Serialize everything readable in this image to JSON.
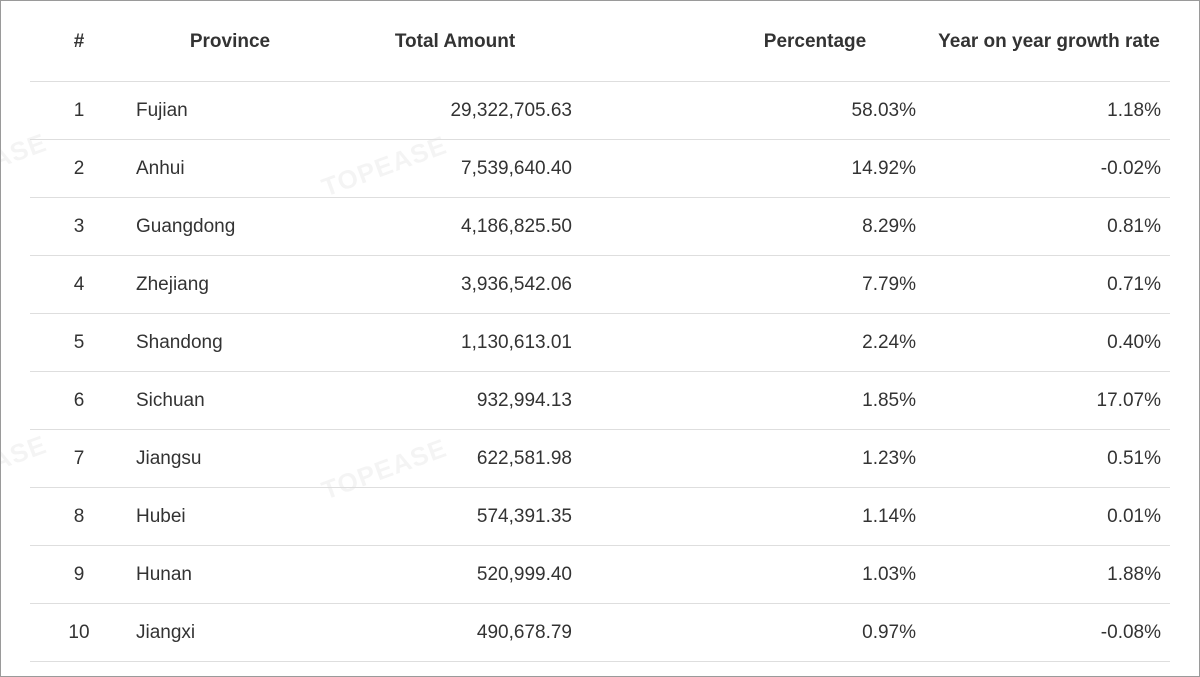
{
  "table": {
    "headers": {
      "rank": "#",
      "province": "Province",
      "total_amount": "Total Amount",
      "percentage": "Percentage",
      "yoy_growth": "Year on year growth rate"
    },
    "rows": [
      {
        "rank": "1",
        "province": "Fujian",
        "total_amount": "29,322,705.63",
        "percentage": "58.03%",
        "yoy_growth": "1.18%"
      },
      {
        "rank": "2",
        "province": "Anhui",
        "total_amount": "7,539,640.40",
        "percentage": "14.92%",
        "yoy_growth": "-0.02%"
      },
      {
        "rank": "3",
        "province": "Guangdong",
        "total_amount": "4,186,825.50",
        "percentage": "8.29%",
        "yoy_growth": "0.81%"
      },
      {
        "rank": "4",
        "province": "Zhejiang",
        "total_amount": "3,936,542.06",
        "percentage": "7.79%",
        "yoy_growth": "0.71%"
      },
      {
        "rank": "5",
        "province": "Shandong",
        "total_amount": "1,130,613.01",
        "percentage": "2.24%",
        "yoy_growth": "0.40%"
      },
      {
        "rank": "6",
        "province": "Sichuan",
        "total_amount": "932,994.13",
        "percentage": "1.85%",
        "yoy_growth": "17.07%"
      },
      {
        "rank": "7",
        "province": "Jiangsu",
        "total_amount": "622,581.98",
        "percentage": "1.23%",
        "yoy_growth": "0.51%"
      },
      {
        "rank": "8",
        "province": "Hubei",
        "total_amount": "574,391.35",
        "percentage": "1.14%",
        "yoy_growth": "0.01%"
      },
      {
        "rank": "9",
        "province": "Hunan",
        "total_amount": "520,999.40",
        "percentage": "1.03%",
        "yoy_growth": "1.88%"
      },
      {
        "rank": "10",
        "province": "Jiangxi",
        "total_amount": "490,678.79",
        "percentage": "0.97%",
        "yoy_growth": "-0.08%"
      }
    ]
  },
  "watermark": {
    "text": "TOPEASE",
    "partial_text": "EASE"
  },
  "colors": {
    "text": "#333333",
    "row_border": "#dedede",
    "frame_border": "#9a9a9a"
  }
}
